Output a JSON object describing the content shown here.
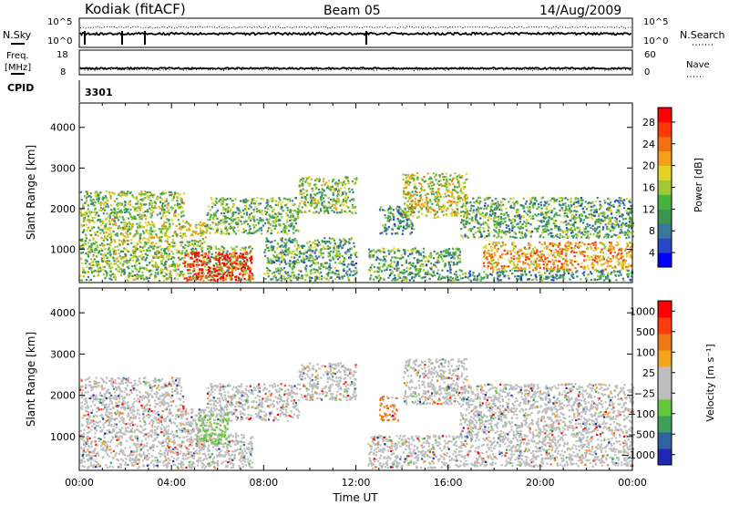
{
  "header": {
    "station": "Kodiak (fitACF)",
    "beam": "Beam 05",
    "date": "14/Aug/2009"
  },
  "status_panels": {
    "nsky_label": "N.Sky",
    "nsky_ticks": [
      "10^5",
      "10^0"
    ],
    "nsearch_label": "N.Search",
    "nsearch_ticks": [
      "10^5",
      "10^0"
    ],
    "freq_label": "Freq.",
    "freq_unit": "[MHz]",
    "freq_ticks": [
      "18",
      "8"
    ],
    "nave_label": "Nave",
    "nave_ticks": [
      "60",
      "0"
    ],
    "cpid_label": "CPID",
    "cpid_value": "3301"
  },
  "chart_data": [
    {
      "type": "heatmap",
      "panel": "power",
      "ylabel": "Slant Range [km]",
      "yticks": [
        1000,
        2000,
        3000,
        4000
      ],
      "ylim": [
        180,
        4600
      ],
      "xlim": [
        0,
        24
      ],
      "colorbar_label": "Power [dB]",
      "colorbar_ticks": [
        "28",
        "24",
        "20",
        "16",
        "12",
        "8",
        "4"
      ],
      "colors": [
        "#0000ff",
        "#2846c8",
        "#37789b",
        "#3c9650",
        "#46b43c",
        "#a0c832",
        "#e6d223",
        "#f5a019",
        "#f56e0f",
        "#ff3705",
        "#ff0000"
      ],
      "regions": [
        {
          "t0": 0.0,
          "t1": 4.5,
          "r0": 1700,
          "r1": 2450,
          "level": 0.45
        },
        {
          "t0": 0.0,
          "t1": 5.5,
          "r0": 1100,
          "r1": 1700,
          "level": 0.5
        },
        {
          "t0": 0.0,
          "t1": 7.5,
          "r0": 250,
          "r1": 1100,
          "level": 0.45
        },
        {
          "t0": 4.5,
          "t1": 7.5,
          "r0": 250,
          "r1": 950,
          "level": 0.95
        },
        {
          "t0": 5.5,
          "t1": 9.5,
          "r0": 1400,
          "r1": 2300,
          "level": 0.4
        },
        {
          "t0": 9.5,
          "t1": 12.0,
          "r0": 1900,
          "r1": 2800,
          "level": 0.45
        },
        {
          "t0": 8.0,
          "t1": 12.0,
          "r0": 250,
          "r1": 1300,
          "level": 0.35
        },
        {
          "t0": 13.0,
          "t1": 14.5,
          "r0": 1400,
          "r1": 2100,
          "level": 0.3
        },
        {
          "t0": 14.0,
          "t1": 16.8,
          "r0": 1800,
          "r1": 2900,
          "level": 0.55
        },
        {
          "t0": 12.5,
          "t1": 16.5,
          "r0": 250,
          "r1": 1050,
          "level": 0.35
        },
        {
          "t0": 16.5,
          "t1": 24.0,
          "r0": 1300,
          "r1": 2300,
          "level": 0.35
        },
        {
          "t0": 17.5,
          "t1": 24.0,
          "r0": 500,
          "r1": 1200,
          "level": 0.7
        },
        {
          "t0": 16.5,
          "t1": 24.0,
          "r0": 250,
          "r1": 500,
          "level": 0.3
        }
      ]
    },
    {
      "type": "heatmap",
      "panel": "velocity",
      "ylabel": "Slant Range [km]",
      "yticks": [
        1000,
        2000,
        3000,
        4000
      ],
      "ylim": [
        180,
        4600
      ],
      "xlim": [
        0,
        24
      ],
      "xlabel": "Time UT",
      "xticks": [
        "00:00",
        "04:00",
        "08:00",
        "12:00",
        "16:00",
        "20:00",
        "00:00"
      ],
      "colorbar_label": "Velocity [m s⁻¹]",
      "colorbar_ticks": [
        "1000",
        "500",
        "100",
        "25",
        "−25",
        "−100",
        "−500",
        "−1000"
      ],
      "colors": [
        "#1e28b4",
        "#2d64a0",
        "#3ca05a",
        "#64c83c",
        "#bebebe",
        "#bebebe",
        "#f5a519",
        "#f07814",
        "#ff3c0a",
        "#ff0000"
      ],
      "regions": [
        {
          "t0": 0.0,
          "t1": 4.5,
          "r0": 1700,
          "r1": 2450,
          "level": 0.5
        },
        {
          "t0": 0.0,
          "t1": 5.5,
          "r0": 1100,
          "r1": 1700,
          "level": 0.5
        },
        {
          "t0": 0.0,
          "t1": 7.5,
          "r0": 250,
          "r1": 1100,
          "level": 0.5
        },
        {
          "t0": 5.5,
          "t1": 9.5,
          "r0": 1400,
          "r1": 2300,
          "level": 0.5
        },
        {
          "t0": 9.5,
          "t1": 12.0,
          "r0": 1900,
          "r1": 2800,
          "level": 0.5
        },
        {
          "t0": 14.0,
          "t1": 16.8,
          "r0": 1800,
          "r1": 2900,
          "level": 0.5
        },
        {
          "t0": 16.5,
          "t1": 24.0,
          "r0": 300,
          "r1": 2300,
          "level": 0.5
        },
        {
          "t0": 12.5,
          "t1": 16.5,
          "r0": 250,
          "r1": 1050,
          "level": 0.5
        },
        {
          "t0": 13.0,
          "t1": 13.8,
          "r0": 1400,
          "r1": 2000,
          "level": 0.75
        },
        {
          "t0": 5.0,
          "t1": 6.5,
          "r0": 800,
          "r1": 1600,
          "level": 0.3
        }
      ]
    }
  ]
}
